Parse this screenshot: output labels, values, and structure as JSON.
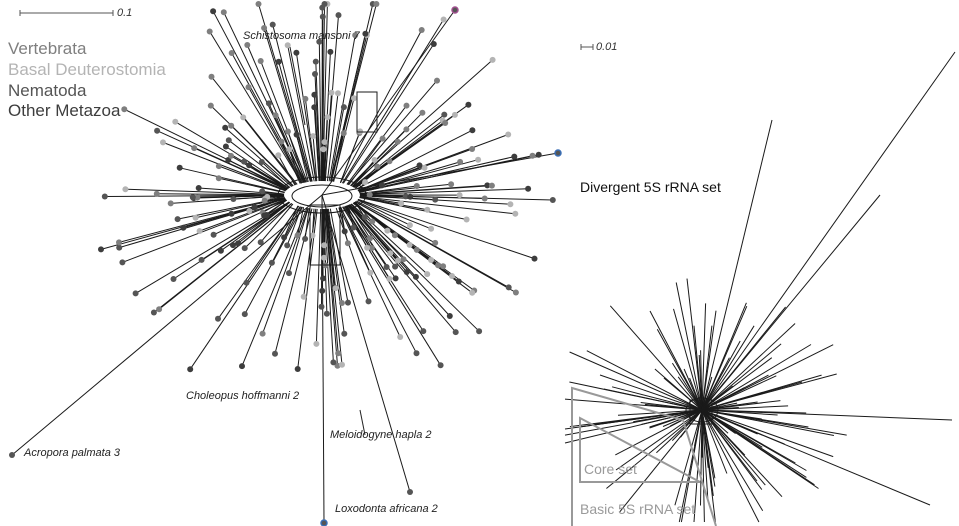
{
  "left_panel": {
    "scale_label": "0.1",
    "legend": [
      {
        "label": "Vertebrata",
        "color": "#7f7f7f"
      },
      {
        "label": "Basal Deuterostomia",
        "color": "#b4b4b4"
      },
      {
        "label": "Nematoda",
        "color": "#555555"
      },
      {
        "label": "Other Metazoa",
        "color": "#3d3d3d"
      }
    ],
    "taxa_labels": [
      "Schistosoma mansoni 7",
      "Choleopus hoffmanni 2",
      "Meloidogyne hapla 2",
      "Acropora palmata 3",
      "Loxodonta africana 2"
    ]
  },
  "right_panel": {
    "scale_label": "0.01",
    "title": "Divergent 5S rRNA set",
    "set_labels": [
      "Core set",
      "Basic 5S rRNA set"
    ]
  },
  "colors": {
    "line": "#1a1a1a",
    "tip": "#666666",
    "outline": "#999999",
    "highlight": "#3b6fb6",
    "magenta": "#a0508f"
  }
}
